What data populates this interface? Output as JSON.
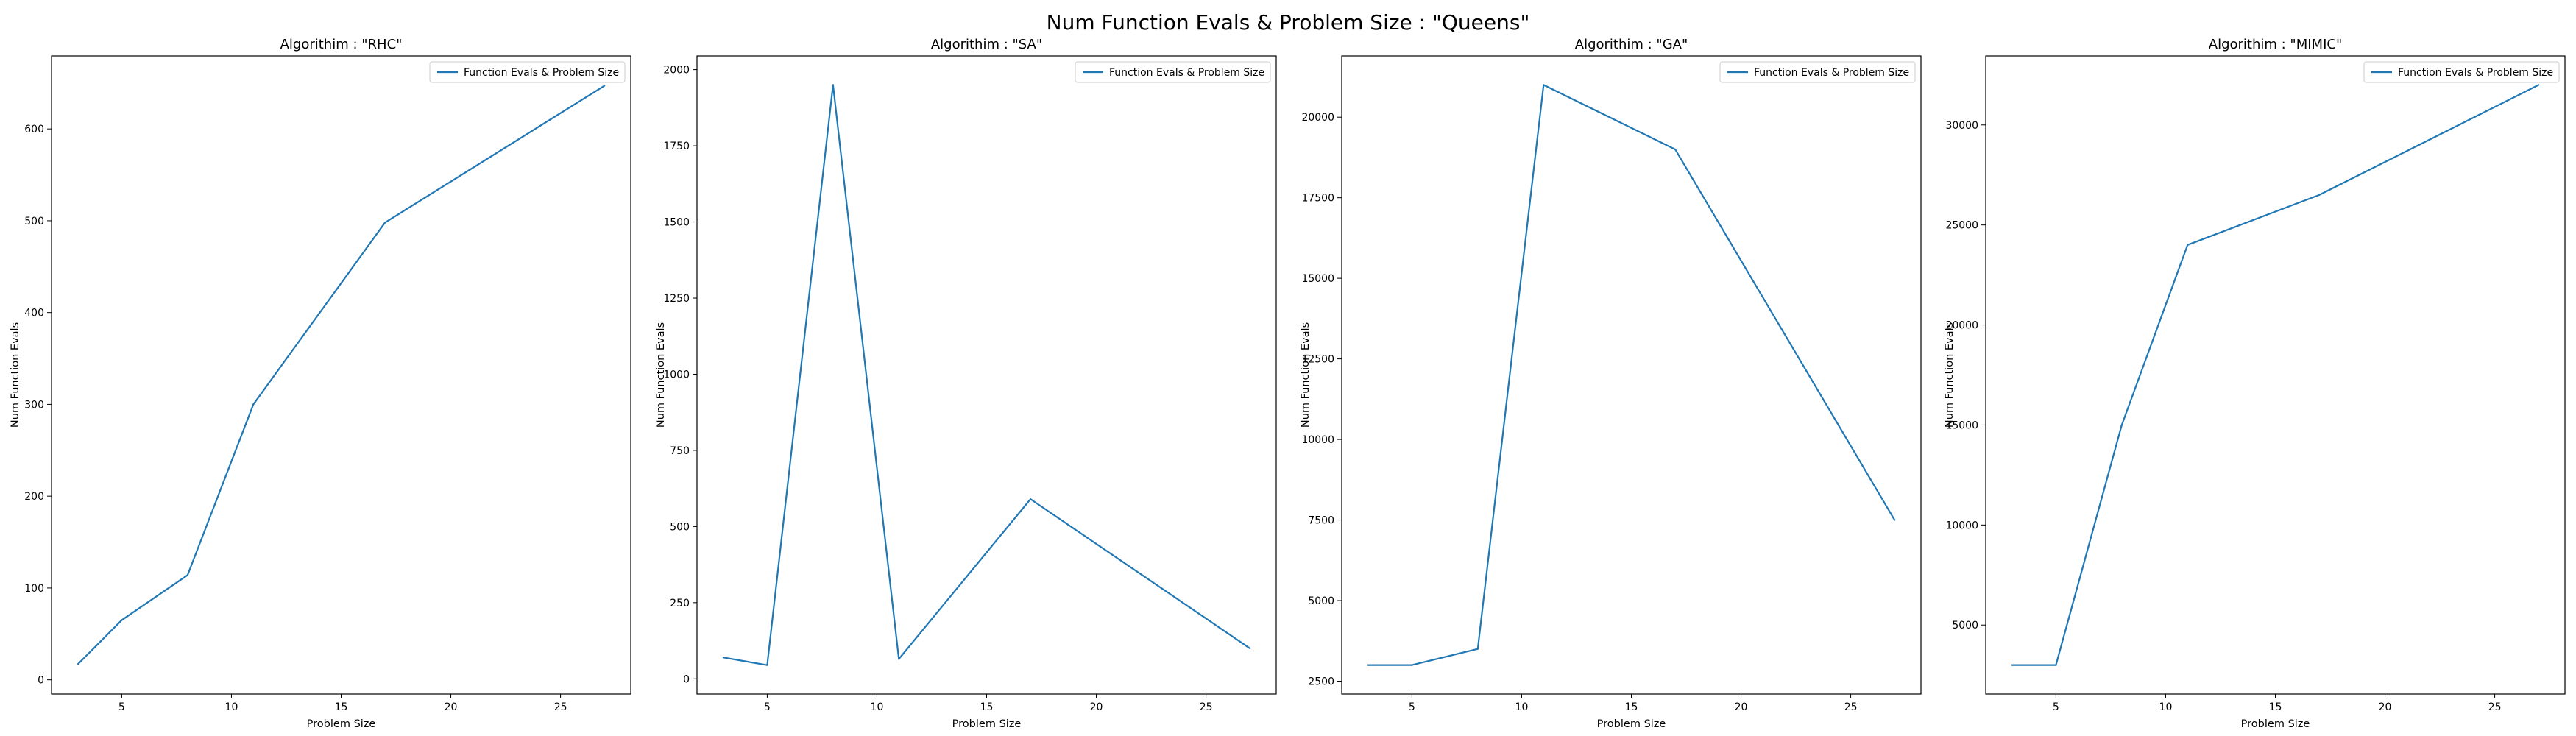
{
  "figure": {
    "suptitle": "Num Function Evals & Problem Size : \"Queens\""
  },
  "colors": {
    "line": "#1f77b4",
    "axes": "#000000",
    "legend_border": "#cccccc",
    "background": "#ffffff"
  },
  "chart_data": [
    {
      "type": "line",
      "title": "Algorithim : \"RHC\"",
      "xlabel": "Problem Size",
      "ylabel": "Num Function Evals",
      "grid": false,
      "legend_position": "upper right",
      "series": [
        {
          "name": "Function Evals & Problem Size",
          "x": [
            3,
            5,
            8,
            11,
            17,
            27
          ],
          "y": [
            17,
            65,
            114,
            300,
            498,
            647
          ]
        }
      ],
      "xticks": [
        5,
        10,
        15,
        20,
        25
      ],
      "yticks": [
        0,
        100,
        200,
        300,
        400,
        500,
        600
      ],
      "xlim": [
        1.8,
        28.2
      ],
      "ylim": [
        -15.5,
        679.5
      ]
    },
    {
      "type": "line",
      "title": "Algorithim : \"SA\"",
      "xlabel": "Problem Size",
      "ylabel": "Num Function Evals",
      "grid": false,
      "legend_position": "upper right",
      "series": [
        {
          "name": "Function Evals & Problem Size",
          "x": [
            3,
            5,
            8,
            11,
            17,
            27
          ],
          "y": [
            70,
            45,
            1950,
            65,
            590,
            100
          ]
        }
      ],
      "xticks": [
        5,
        10,
        15,
        20,
        25
      ],
      "yticks": [
        0,
        250,
        500,
        750,
        1000,
        1250,
        1500,
        1750,
        2000
      ],
      "xlim": [
        1.8,
        28.2
      ],
      "ylim": [
        -50,
        2045
      ]
    },
    {
      "type": "line",
      "title": "Algorithim : \"GA\"",
      "xlabel": "Problem Size",
      "ylabel": "Num Function Evals",
      "grid": false,
      "legend_position": "upper right",
      "series": [
        {
          "name": "Function Evals & Problem Size",
          "x": [
            3,
            5,
            8,
            11,
            17,
            27
          ],
          "y": [
            3000,
            3000,
            3500,
            21000,
            19000,
            7500
          ]
        }
      ],
      "xticks": [
        5,
        10,
        15,
        20,
        25
      ],
      "yticks": [
        2500,
        5000,
        7500,
        10000,
        12500,
        15000,
        17500,
        20000
      ],
      "xlim": [
        1.8,
        28.2
      ],
      "ylim": [
        2100,
        21900
      ]
    },
    {
      "type": "line",
      "title": "Algorithim : \"MIMIC\"",
      "xlabel": "Problem Size",
      "ylabel": "Num Function Evals",
      "grid": false,
      "legend_position": "upper right",
      "series": [
        {
          "name": "Function Evals & Problem Size",
          "x": [
            3,
            5,
            8,
            11,
            17,
            27
          ],
          "y": [
            3000,
            3000,
            15000,
            24000,
            26500,
            32000
          ]
        }
      ],
      "xticks": [
        5,
        10,
        15,
        20,
        25
      ],
      "yticks": [
        5000,
        10000,
        15000,
        20000,
        25000,
        30000
      ],
      "xlim": [
        1.8,
        28.2
      ],
      "ylim": [
        1550,
        33450
      ]
    }
  ]
}
